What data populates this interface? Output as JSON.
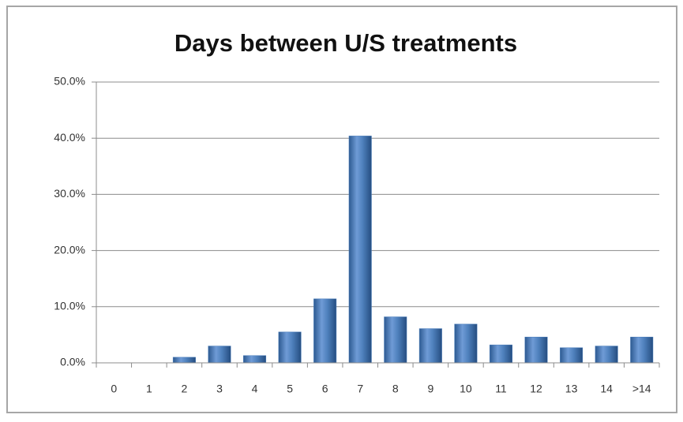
{
  "chart_data": {
    "type": "bar",
    "title": "Days between U/S treatments",
    "categories": [
      "0",
      "1",
      "2",
      "3",
      "4",
      "5",
      "6",
      "7",
      "8",
      "9",
      "10",
      "11",
      "12",
      "13",
      "14",
      ">14"
    ],
    "values": [
      0,
      0,
      1.0,
      3.0,
      1.3,
      5.5,
      11.4,
      40.4,
      8.2,
      6.1,
      6.9,
      3.2,
      4.6,
      2.7,
      3.0,
      4.6
    ],
    "color": "#4f81bd",
    "ylim": [
      0,
      50
    ],
    "yticks": [
      {
        "value": 0,
        "label": "0.0%"
      },
      {
        "value": 10,
        "label": "10.0%"
      },
      {
        "value": 20,
        "label": "20.0%"
      },
      {
        "value": 30,
        "label": "30.0%"
      },
      {
        "value": 40,
        "label": "40.0%"
      },
      {
        "value": 50,
        "label": "50.0%"
      }
    ],
    "grid": true
  }
}
